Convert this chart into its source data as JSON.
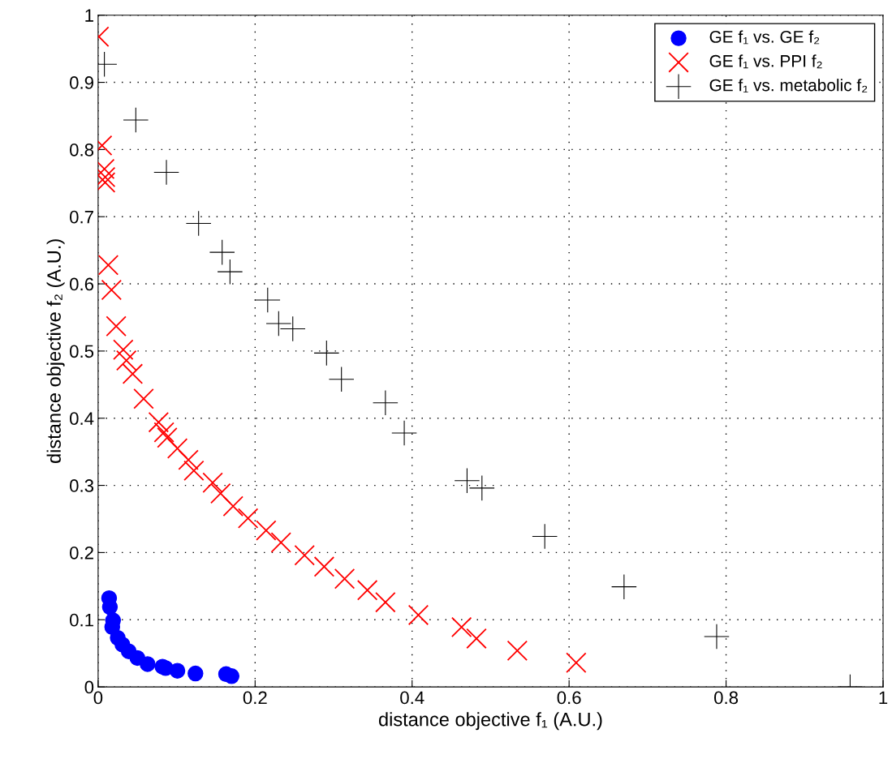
{
  "chart_data": {
    "type": "scatter",
    "xlabel": "distance objective f₁ (A.U.)",
    "ylabel": "distance objective f₂ (A.U.)",
    "xlim": [
      0,
      1
    ],
    "ylim": [
      0,
      1
    ],
    "xticks": [
      0,
      0.2,
      0.4,
      0.6,
      0.8,
      1
    ],
    "yticks": [
      0,
      0.1,
      0.2,
      0.3,
      0.4,
      0.5,
      0.6,
      0.7,
      0.8,
      0.9,
      1
    ],
    "grid": true,
    "legend": "top right",
    "series": [
      {
        "name": "GE f₁ vs. GE f₂",
        "color": "#0000ff",
        "marker": "circle",
        "x": [
          0.014,
          0.015,
          0.019,
          0.018,
          0.025,
          0.031,
          0.039,
          0.05,
          0.063,
          0.082,
          0.086,
          0.101,
          0.124,
          0.163,
          0.17
        ],
        "values": [
          0.132,
          0.119,
          0.099,
          0.089,
          0.073,
          0.063,
          0.053,
          0.043,
          0.034,
          0.03,
          0.028,
          0.024,
          0.02,
          0.019,
          0.016
        ]
      },
      {
        "name": "GE f₁ vs. PPI f₂",
        "color": "#ff0000",
        "marker": "cross",
        "x": [
          0.001,
          0.005,
          0.008,
          0.009,
          0.009,
          0.013,
          0.017,
          0.023,
          0.032,
          0.036,
          0.044,
          0.058,
          0.077,
          0.084,
          0.088,
          0.101,
          0.115,
          0.122,
          0.146,
          0.156,
          0.172,
          0.191,
          0.214,
          0.233,
          0.263,
          0.288,
          0.314,
          0.343,
          0.366,
          0.408,
          0.463,
          0.482,
          0.534,
          0.609
        ],
        "values": [
          0.968,
          0.806,
          0.771,
          0.759,
          0.751,
          0.628,
          0.591,
          0.537,
          0.502,
          0.486,
          0.466,
          0.429,
          0.394,
          0.379,
          0.371,
          0.355,
          0.338,
          0.322,
          0.304,
          0.288,
          0.269,
          0.251,
          0.233,
          0.215,
          0.196,
          0.179,
          0.161,
          0.144,
          0.126,
          0.107,
          0.089,
          0.072,
          0.054,
          0.036
        ]
      },
      {
        "name": "GE f₁ vs. metabolic f₂",
        "color": "#000000",
        "x": [
          0.008,
          0.048,
          0.087,
          0.128,
          0.158,
          0.168,
          0.216,
          0.23,
          0.248,
          0.291,
          0.31,
          0.366,
          0.39,
          0.47,
          0.489,
          0.569,
          0.67,
          0.788,
          0.958
        ],
        "values": [
          0.927,
          0.844,
          0.766,
          0.69,
          0.647,
          0.618,
          0.576,
          0.541,
          0.533,
          0.497,
          0.458,
          0.423,
          0.378,
          0.307,
          0.296,
          0.224,
          0.149,
          0.075,
          0.0
        ]
      }
    ]
  }
}
